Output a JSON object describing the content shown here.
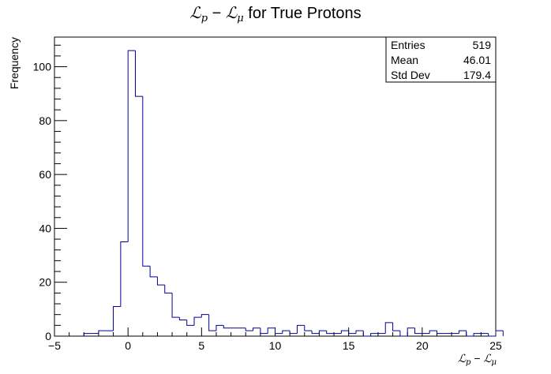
{
  "chart_data": {
    "type": "bar",
    "histogram": true,
    "title_parts": {
      "a": "ℒ",
      "a_sub": "p",
      "minus": " − ",
      "b": "ℒ",
      "b_sub": "μ",
      "rest": " for True Protons"
    },
    "xlabel_parts": {
      "a": "ℒ",
      "a_sub": "p",
      "minus": " − ",
      "b": "ℒ",
      "b_sub": "μ"
    },
    "ylabel": "Frequency",
    "xlim": [
      -5,
      25
    ],
    "ylim": [
      0,
      111
    ],
    "x_ticks": [
      -5,
      0,
      5,
      10,
      15,
      20,
      25
    ],
    "y_ticks": [
      0,
      20,
      40,
      60,
      80,
      100
    ],
    "bin_width": 0.5,
    "bins_start": -3.0,
    "values": [
      1,
      1,
      2,
      2,
      11,
      35,
      106,
      89,
      26,
      22,
      19,
      16,
      7,
      6,
      4,
      7,
      8,
      2,
      4,
      3,
      3,
      3,
      2,
      3,
      1,
      3,
      1,
      2,
      1,
      4,
      2,
      1,
      2,
      1,
      1,
      2,
      1,
      2,
      0,
      1,
      1,
      5,
      2,
      0,
      3,
      1,
      1,
      2,
      1,
      1,
      1,
      2,
      0,
      1,
      1,
      0,
      2
    ],
    "line_color": "#000099",
    "grid": false,
    "stats": {
      "rows": [
        {
          "label": "Entries",
          "value": "519"
        },
        {
          "label": "Mean",
          "value": "46.01"
        },
        {
          "label": "Std Dev",
          "value": "179.4"
        }
      ],
      "placement": "top-right"
    }
  }
}
